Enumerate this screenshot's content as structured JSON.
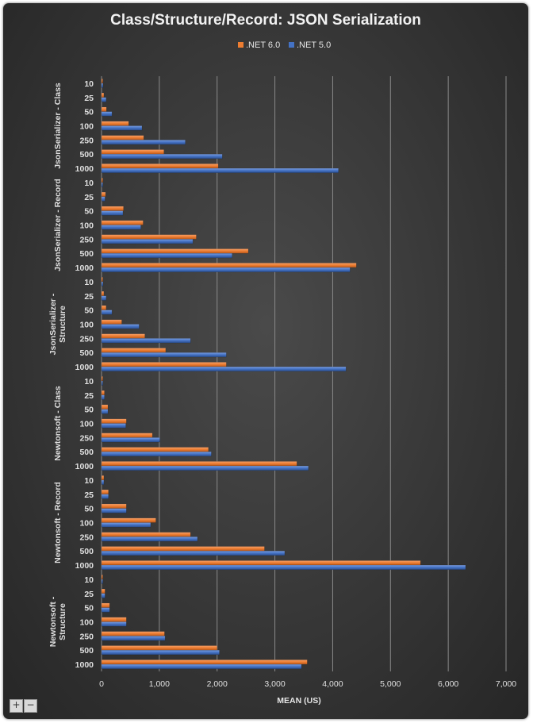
{
  "zoom": {
    "in_label": "+",
    "out_label": "−"
  },
  "chart_data": {
    "type": "bar",
    "orientation": "horizontal",
    "title": "Class/Structure/Record: JSON Serialization",
    "xlabel": "MEAN (US)",
    "ylabel": "",
    "xlim": [
      0,
      7000
    ],
    "xticks": [
      0,
      1000,
      2000,
      3000,
      4000,
      5000,
      6000,
      7000
    ],
    "xtick_labels": [
      "0",
      "1,000",
      "2,000",
      "3,000",
      "4,000",
      "5,000",
      "6,000",
      "7,000"
    ],
    "grid": true,
    "legend": "top-center",
    "colors": {
      ".NET 6.0": "#ed7d31",
      ".NET 5.0": "#4472c4"
    },
    "groups": [
      {
        "name": "JsonSerializer - Class",
        "name_lines": [
          "JsonSerializer - Class"
        ],
        "categories": [
          "10",
          "25",
          "50",
          "100",
          "250",
          "500",
          "1000"
        ],
        "series": [
          {
            "name": ".NET 6.0",
            "values": [
              15,
              40,
              85,
              470,
              730,
              1080,
              2020
            ]
          },
          {
            "name": ".NET 5.0",
            "values": [
              25,
              80,
              180,
              700,
              1450,
              2090,
              4100
            ]
          }
        ]
      },
      {
        "name": "JsonSerializer - Record",
        "name_lines": [
          "JsonSerializer - Record"
        ],
        "categories": [
          "10",
          "25",
          "50",
          "100",
          "250",
          "500",
          "1000"
        ],
        "series": [
          {
            "name": ".NET 6.0",
            "values": [
              15,
              70,
              380,
              720,
              1640,
              2540,
              4410
            ]
          },
          {
            "name": ".NET 5.0",
            "values": [
              15,
              60,
              370,
              680,
              1580,
              2260,
              4300
            ]
          }
        ]
      },
      {
        "name": "JsonSerializer - Structure",
        "name_lines": [
          "JsonSerializer -",
          "Structure"
        ],
        "categories": [
          "10",
          "25",
          "50",
          "100",
          "250",
          "500",
          "1000"
        ],
        "series": [
          {
            "name": ".NET 6.0",
            "values": [
              15,
              40,
              80,
              350,
              750,
              1110,
              2160
            ]
          },
          {
            "name": ".NET 5.0",
            "values": [
              25,
              80,
              180,
              650,
              1540,
              2160,
              4230
            ]
          }
        ]
      },
      {
        "name": "Newtonsoft - Class",
        "name_lines": [
          "Newtonsoft - Class"
        ],
        "categories": [
          "10",
          "25",
          "50",
          "100",
          "250",
          "500",
          "1000"
        ],
        "series": [
          {
            "name": ".NET 6.0",
            "values": [
              15,
              50,
              110,
              430,
              880,
              1850,
              3380
            ]
          },
          {
            "name": ".NET 5.0",
            "values": [
              15,
              50,
              110,
              420,
              1010,
              1900,
              3580
            ]
          }
        ]
      },
      {
        "name": "Newtonsoft - Record",
        "name_lines": [
          "Newtonsoft - Record"
        ],
        "categories": [
          "10",
          "25",
          "50",
          "100",
          "250",
          "500",
          "1000"
        ],
        "series": [
          {
            "name": ".NET 6.0",
            "values": [
              40,
              120,
              430,
              940,
              1540,
              2820,
              5520
            ]
          },
          {
            "name": ".NET 5.0",
            "values": [
              40,
              120,
              430,
              850,
              1660,
              3170,
              6300
            ]
          }
        ]
      },
      {
        "name": "Newtonsoft - Structure",
        "name_lines": [
          "Newtonsoft -",
          "Structure"
        ],
        "categories": [
          "10",
          "25",
          "50",
          "100",
          "250",
          "500",
          "1000"
        ],
        "series": [
          {
            "name": ".NET 6.0",
            "values": [
              20,
              60,
              140,
              430,
              1090,
              2000,
              3560
            ]
          },
          {
            "name": ".NET 5.0",
            "values": [
              20,
              60,
              140,
              430,
              1100,
              2040,
              3460
            ]
          }
        ]
      }
    ]
  }
}
